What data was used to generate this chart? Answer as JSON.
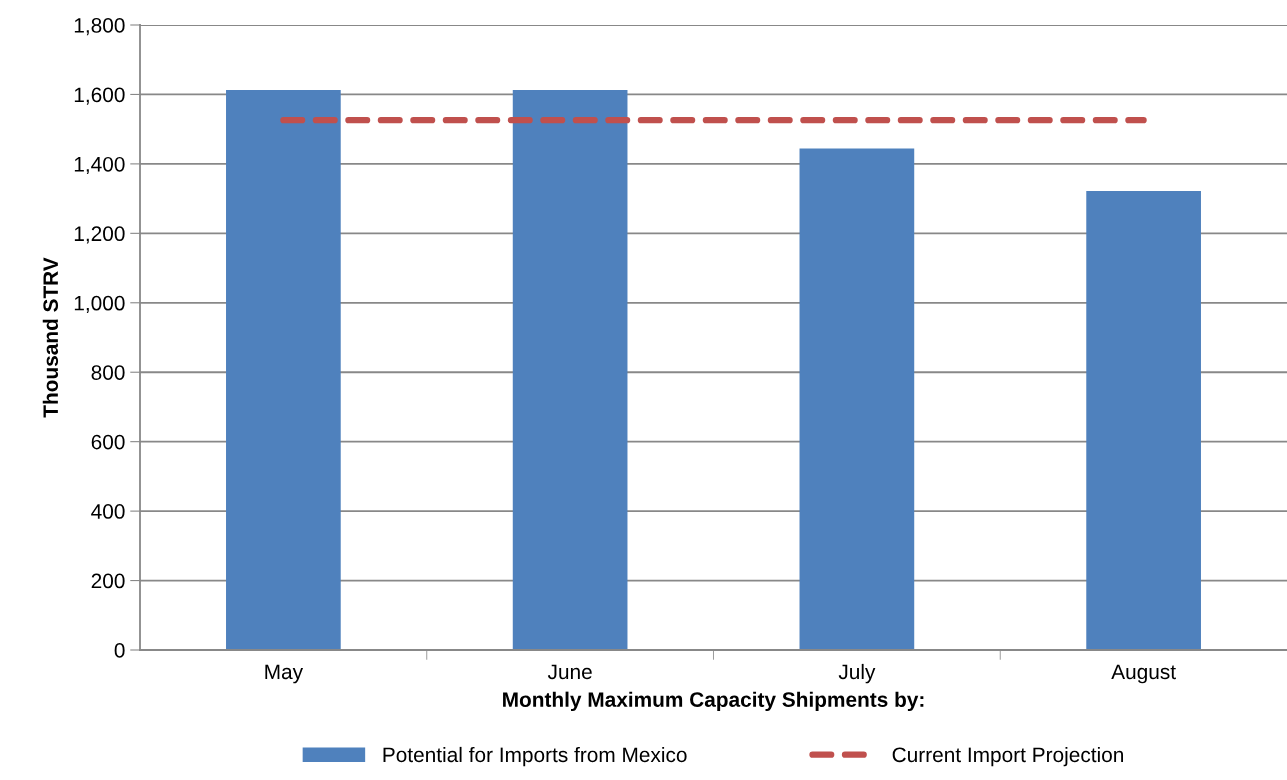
{
  "chart_data": {
    "type": "bar",
    "xlabel": "Monthly Maximum Capacity Shipments by:",
    "ylabel": "Thousand STRV",
    "categories": [
      "May",
      "June",
      "July",
      "August"
    ],
    "series": [
      {
        "name": "Potential for Imports from Mexico",
        "color": "#4f81bd",
        "values": [
          1613,
          1613,
          1444,
          1322
        ]
      },
      {
        "name": "Current Import Projection",
        "type": "line",
        "line_style": "dashed",
        "color": "#c0504d",
        "values": [
          1526,
          1526,
          1526,
          1526
        ]
      }
    ],
    "ylim": [
      0,
      1800
    ],
    "yticks": [
      {
        "value": 0,
        "label": "0"
      },
      {
        "value": 200,
        "label": "200"
      },
      {
        "value": 400,
        "label": "400"
      },
      {
        "value": 600,
        "label": "600"
      },
      {
        "value": 800,
        "label": "800"
      },
      {
        "value": 1000,
        "label": "1,000"
      },
      {
        "value": 1200,
        "label": "1,200"
      },
      {
        "value": 1400,
        "label": "1,400"
      },
      {
        "value": 1600,
        "label": "1,600"
      },
      {
        "value": 1800,
        "label": "1,800"
      }
    ],
    "grid": "y",
    "legend": "bottom"
  }
}
